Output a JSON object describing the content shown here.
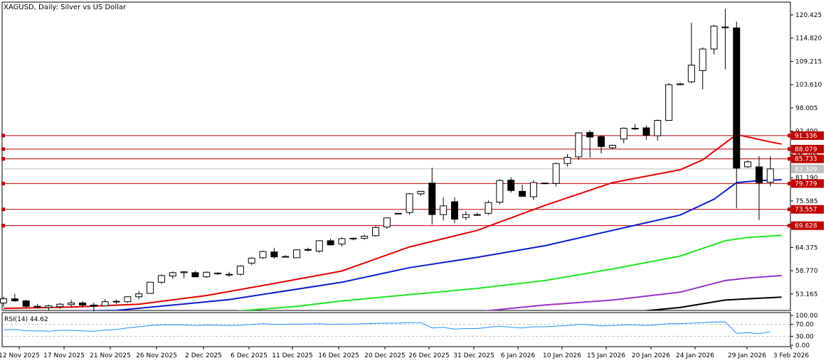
{
  "chart_data": {
    "type": "candlestick",
    "title": "XAGUSD, Daily:  Silver vs US Dollar",
    "ylim": [
      49.2,
      123.5
    ],
    "yticks": [
      "120.425",
      "114.820",
      "109.215",
      "103.610",
      "98.005",
      "92.400",
      "86.795",
      "81.190",
      "75.585",
      "69.980",
      "64.375",
      "58.770",
      "53.165"
    ],
    "xticks": [
      "12 Nov 2025",
      "17 Nov 2025",
      "21 Nov 2025",
      "26 Nov 2025",
      "2 Dec 2025",
      "6 Dec 2025",
      "11 Dec 2025",
      "16 Dec 2025",
      "20 Dec 2025",
      "26 Dec 2025",
      "31 Dec 2025",
      "6 Jan 2026",
      "10 Jan 2026",
      "15 Jan 2026",
      "20 Jan 2026",
      "24 Jan 2026",
      "29 Jan 2026",
      "3 Feb 2026"
    ],
    "candles": [
      {
        "o": 51.0,
        "h": 52.5,
        "l": 50.1,
        "c": 52.0
      },
      {
        "o": 52.0,
        "h": 53.2,
        "l": 51.3,
        "c": 51.5
      },
      {
        "o": 51.5,
        "h": 51.8,
        "l": 49.8,
        "c": 50.2
      },
      {
        "o": 50.2,
        "h": 50.8,
        "l": 49.6,
        "c": 50.0
      },
      {
        "o": 49.9,
        "h": 50.6,
        "l": 49.3,
        "c": 50.3
      },
      {
        "o": 50.1,
        "h": 51.0,
        "l": 49.6,
        "c": 50.7
      },
      {
        "o": 50.6,
        "h": 51.7,
        "l": 50.0,
        "c": 51.0
      },
      {
        "o": 51.0,
        "h": 51.4,
        "l": 49.9,
        "c": 50.5
      },
      {
        "o": 50.5,
        "h": 51.1,
        "l": 49.0,
        "c": 50.2
      },
      {
        "o": 50.3,
        "h": 51.9,
        "l": 50.2,
        "c": 51.3
      },
      {
        "o": 51.3,
        "h": 51.8,
        "l": 50.8,
        "c": 51.4
      },
      {
        "o": 51.3,
        "h": 52.6,
        "l": 51.0,
        "c": 52.5
      },
      {
        "o": 52.5,
        "h": 53.9,
        "l": 51.9,
        "c": 53.2
      },
      {
        "o": 53.3,
        "h": 56.1,
        "l": 53.2,
        "c": 56.0
      },
      {
        "o": 56.0,
        "h": 57.9,
        "l": 55.6,
        "c": 57.6
      },
      {
        "o": 57.5,
        "h": 58.6,
        "l": 56.8,
        "c": 58.3
      },
      {
        "o": 58.3,
        "h": 58.7,
        "l": 57.0,
        "c": 58.5
      },
      {
        "o": 58.3,
        "h": 58.7,
        "l": 57.2,
        "c": 57.3
      },
      {
        "o": 57.3,
        "h": 58.6,
        "l": 57.0,
        "c": 58.4
      },
      {
        "o": 58.2,
        "h": 58.4,
        "l": 57.7,
        "c": 58.2
      },
      {
        "o": 57.8,
        "h": 58.5,
        "l": 57.3,
        "c": 57.9
      },
      {
        "o": 57.9,
        "h": 60.1,
        "l": 57.6,
        "c": 59.9
      },
      {
        "o": 60.6,
        "h": 62.0,
        "l": 60.1,
        "c": 61.8
      },
      {
        "o": 61.9,
        "h": 63.6,
        "l": 61.6,
        "c": 63.4
      },
      {
        "o": 63.3,
        "h": 64.3,
        "l": 61.7,
        "c": 62.1
      },
      {
        "o": 62.2,
        "h": 62.5,
        "l": 62.0,
        "c": 62.2
      },
      {
        "o": 61.9,
        "h": 63.9,
        "l": 61.8,
        "c": 63.8
      },
      {
        "o": 63.9,
        "h": 64.3,
        "l": 63.4,
        "c": 63.7
      },
      {
        "o": 63.5,
        "h": 66.1,
        "l": 63.1,
        "c": 66.0
      },
      {
        "o": 66.0,
        "h": 66.5,
        "l": 64.8,
        "c": 65.0
      },
      {
        "o": 65.2,
        "h": 66.8,
        "l": 64.6,
        "c": 66.5
      },
      {
        "o": 66.5,
        "h": 66.7,
        "l": 66.1,
        "c": 66.6
      },
      {
        "o": 66.6,
        "h": 67.4,
        "l": 66.2,
        "c": 67.1
      },
      {
        "o": 67.2,
        "h": 69.5,
        "l": 67.0,
        "c": 69.2
      },
      {
        "o": 69.3,
        "h": 71.6,
        "l": 68.9,
        "c": 71.5
      },
      {
        "o": 72.6,
        "h": 72.7,
        "l": 72.5,
        "c": 72.6
      },
      {
        "o": 72.8,
        "h": 77.5,
        "l": 72.3,
        "c": 77.3
      },
      {
        "o": 77.3,
        "h": 78.0,
        "l": 76.8,
        "c": 77.9
      },
      {
        "o": 79.9,
        "h": 83.6,
        "l": 69.9,
        "c": 72.3
      },
      {
        "o": 72.3,
        "h": 76.5,
        "l": 70.9,
        "c": 74.4
      },
      {
        "o": 75.4,
        "h": 76.4,
        "l": 70.2,
        "c": 71.2
      },
      {
        "o": 71.6,
        "h": 73.1,
        "l": 71.0,
        "c": 72.3
      },
      {
        "o": 72.3,
        "h": 72.8,
        "l": 72.0,
        "c": 72.3
      },
      {
        "o": 72.6,
        "h": 75.7,
        "l": 72.3,
        "c": 75.2
      },
      {
        "o": 75.3,
        "h": 80.8,
        "l": 74.8,
        "c": 80.5
      },
      {
        "o": 80.6,
        "h": 81.3,
        "l": 77.6,
        "c": 78.1
      },
      {
        "o": 77.9,
        "h": 79.5,
        "l": 76.7,
        "c": 76.7
      },
      {
        "o": 76.6,
        "h": 80.6,
        "l": 75.8,
        "c": 80.0
      },
      {
        "o": 79.8,
        "h": 80.0,
        "l": 79.7,
        "c": 79.9
      },
      {
        "o": 79.8,
        "h": 84.8,
        "l": 79.1,
        "c": 84.6
      },
      {
        "o": 84.6,
        "h": 86.9,
        "l": 83.9,
        "c": 86.1
      },
      {
        "o": 86.2,
        "h": 92.1,
        "l": 85.5,
        "c": 92.0
      },
      {
        "o": 92.1,
        "h": 92.6,
        "l": 86.0,
        "c": 91.0
      },
      {
        "o": 91.1,
        "h": 91.4,
        "l": 87.0,
        "c": 88.7
      },
      {
        "o": 88.4,
        "h": 89.2,
        "l": 88.0,
        "c": 89.0
      },
      {
        "o": 90.5,
        "h": 93.3,
        "l": 89.5,
        "c": 93.1
      },
      {
        "o": 93.1,
        "h": 94.1,
        "l": 92.7,
        "c": 93.1
      },
      {
        "o": 93.2,
        "h": 93.8,
        "l": 90.3,
        "c": 91.4
      },
      {
        "o": 91.3,
        "h": 95.2,
        "l": 90.1,
        "c": 95.0
      },
      {
        "o": 95.0,
        "h": 104.0,
        "l": 95.0,
        "c": 103.6
      },
      {
        "o": 103.6,
        "h": 104.1,
        "l": 103.5,
        "c": 103.8
      },
      {
        "o": 104.3,
        "h": 118.5,
        "l": 103.9,
        "c": 108.3
      },
      {
        "o": 107.0,
        "h": 112.6,
        "l": 102.5,
        "c": 112.2
      },
      {
        "o": 112.2,
        "h": 118.0,
        "l": 110.9,
        "c": 117.7
      },
      {
        "o": 117.4,
        "h": 121.9,
        "l": 107.3,
        "c": 117.5
      },
      {
        "o": 117.3,
        "h": 118.8,
        "l": 73.8,
        "c": 83.5
      },
      {
        "o": 83.8,
        "h": 85.4,
        "l": 83.5,
        "c": 85.0
      },
      {
        "o": 83.8,
        "h": 86.4,
        "l": 71.0,
        "c": 80.0
      },
      {
        "o": 80.1,
        "h": 86.4,
        "l": 79.1,
        "c": 83.3
      }
    ],
    "moving_averages": [
      {
        "color": "#e60000",
        "values": [
          [
            0,
            49.7
          ],
          [
            6,
            50.0
          ],
          [
            12,
            50.7
          ],
          [
            18,
            52.8
          ],
          [
            24,
            55.7
          ],
          [
            30,
            58.7
          ],
          [
            36,
            64.5
          ],
          [
            42,
            68.5
          ],
          [
            48,
            74.5
          ],
          [
            54,
            80.0
          ],
          [
            60,
            83.1
          ],
          [
            62,
            85.5
          ],
          [
            65,
            91.6
          ],
          [
            66,
            91.0
          ],
          [
            68,
            89.8
          ],
          [
            69,
            89.3
          ]
        ]
      },
      {
        "color": "#0a1ecc",
        "values": [
          [
            0,
            48.8
          ],
          [
            10,
            49.2
          ],
          [
            20,
            51.8
          ],
          [
            30,
            56.0
          ],
          [
            36,
            59.5
          ],
          [
            42,
            62.0
          ],
          [
            48,
            64.8
          ],
          [
            54,
            68.5
          ],
          [
            60,
            72.2
          ],
          [
            63,
            76.0
          ],
          [
            65,
            80.0
          ],
          [
            67,
            80.5
          ],
          [
            69,
            80.7
          ]
        ]
      },
      {
        "color": "#1ee61e",
        "values": [
          [
            20,
            48.9
          ],
          [
            26,
            50.2
          ],
          [
            30,
            51.5
          ],
          [
            36,
            53.0
          ],
          [
            42,
            54.5
          ],
          [
            48,
            56.4
          ],
          [
            54,
            59.2
          ],
          [
            60,
            62.3
          ],
          [
            64,
            66.0
          ],
          [
            66,
            66.8
          ],
          [
            69,
            67.3
          ]
        ]
      },
      {
        "color": "#9b30c8",
        "values": [
          [
            42,
            48.9
          ],
          [
            48,
            50.5
          ],
          [
            54,
            51.7
          ],
          [
            60,
            53.6
          ],
          [
            64,
            56.4
          ],
          [
            66,
            57.0
          ],
          [
            69,
            57.6
          ]
        ]
      },
      {
        "color": "#000000",
        "values": [
          [
            56,
            48.9
          ],
          [
            60,
            49.9
          ],
          [
            64,
            51.7
          ],
          [
            66,
            52.0
          ],
          [
            69,
            52.4
          ]
        ]
      }
    ],
    "price_lines": [
      {
        "value": 91.336,
        "label": "91.336",
        "color": "#c00000"
      },
      {
        "value": 88.079,
        "label": "88.079",
        "color": "#c00000"
      },
      {
        "value": 85.733,
        "label": "85.733",
        "color": "#c00000"
      },
      {
        "value": 79.779,
        "label": "79.779",
        "color": "#c00000"
      },
      {
        "value": 73.557,
        "label": "73.557",
        "color": "#c00000"
      },
      {
        "value": 69.628,
        "label": "69.628",
        "color": "#c00000"
      }
    ],
    "current_price": {
      "value": 83.309,
      "label": "83.309"
    },
    "rsi": {
      "label": "RSI(14) 44.62",
      "ylim": [
        0,
        100
      ],
      "ticks": [
        "100.00",
        "70.00",
        "30.00",
        "0.00"
      ],
      "levels": [
        70,
        30
      ],
      "values": [
        52,
        53,
        48,
        48,
        47,
        50,
        50,
        48,
        47,
        51,
        53,
        58,
        62,
        66,
        68,
        68,
        68,
        66,
        68,
        67,
        66,
        67,
        70,
        72,
        70,
        70,
        71,
        71,
        72,
        70,
        71,
        71,
        72,
        73,
        74,
        74,
        76,
        76,
        58,
        60,
        54,
        56,
        56,
        60,
        64,
        60,
        58,
        62,
        62,
        64,
        66,
        70,
        68,
        65,
        66,
        68,
        68,
        66,
        69,
        72,
        72,
        74,
        76,
        78,
        78,
        40,
        42,
        39,
        44.62
      ]
    }
  }
}
